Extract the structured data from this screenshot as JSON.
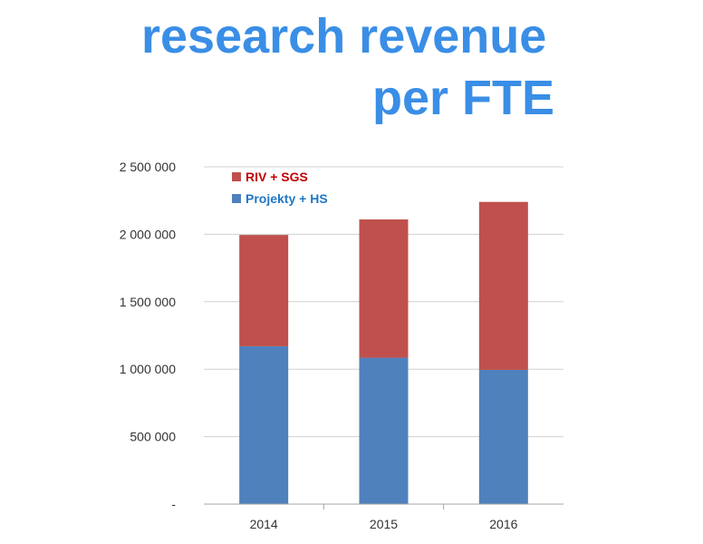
{
  "title": {
    "line1": "research revenue",
    "line2": "per FTE"
  },
  "colors": {
    "title": "#3a8ee6",
    "series_bottom": "#4f81bd",
    "series_top": "#c0504d",
    "legend_top_text": "#c00000",
    "legend_bottom_text": "#1f77c4",
    "grid": "#d0d0d0"
  },
  "chart_data": {
    "type": "bar",
    "stacked": true,
    "categories": [
      "2014",
      "2015",
      "2016"
    ],
    "series": [
      {
        "name": "Projekty + HS",
        "values": [
          1170000,
          1085000,
          995000
        ]
      },
      {
        "name": "RIV + SGS",
        "values": [
          825000,
          1025000,
          1245000
        ]
      }
    ],
    "ylim": [
      0,
      2500000
    ],
    "yticks": [
      0,
      500000,
      1000000,
      1500000,
      2000000,
      2500000
    ],
    "ytick_labels": [
      "-",
      "500 000",
      "1 000 000",
      "1 500 000",
      "2 000 000",
      "2 500 000"
    ],
    "grid": true,
    "legend": {
      "position": "top-left",
      "entries": [
        "RIV + SGS",
        "Projekty + HS"
      ]
    }
  }
}
